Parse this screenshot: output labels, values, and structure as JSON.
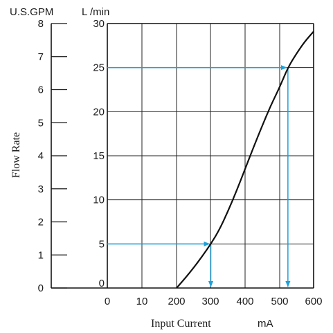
{
  "chart_data": {
    "type": "line",
    "xlabel": "Input Current",
    "xlabel_unit": "mA",
    "ylabel": "Flow Rate",
    "y_left_unit": "U.S.GPM",
    "y_right_unit": "L /min",
    "x_ticks": [
      "0",
      "10",
      "200",
      "300",
      "400",
      "500",
      "600"
    ],
    "y_left_ticks": [
      "0",
      "1",
      "2",
      "3",
      "4",
      "5",
      "6",
      "7",
      "8"
    ],
    "y_right_ticks": [
      "0",
      "5",
      "10",
      "15",
      "20",
      "25",
      "30"
    ],
    "ylim_lpm": [
      0,
      30
    ],
    "ylim_gpm": [
      0,
      8
    ],
    "grid": true,
    "series": [
      {
        "points": [
          {
            "x": 200,
            "y": 0
          },
          {
            "x": 225,
            "y": 1.1
          },
          {
            "x": 250,
            "y": 2.3
          },
          {
            "x": 275,
            "y": 3.6
          },
          {
            "x": 300,
            "y": 5
          },
          {
            "x": 325,
            "y": 6.6
          },
          {
            "x": 350,
            "y": 8.7
          },
          {
            "x": 375,
            "y": 11.0
          },
          {
            "x": 400,
            "y": 13.5
          },
          {
            "x": 425,
            "y": 16.0
          },
          {
            "x": 450,
            "y": 18.4
          },
          {
            "x": 475,
            "y": 20.7
          },
          {
            "x": 500,
            "y": 22.7
          },
          {
            "x": 525,
            "y": 25
          },
          {
            "x": 550,
            "y": 26.6
          },
          {
            "x": 575,
            "y": 28.0
          },
          {
            "x": 600,
            "y": 29.1
          }
        ]
      }
    ],
    "guides": [
      {
        "x": 300,
        "y": 5
      },
      {
        "x": 525,
        "y": 25
      }
    ],
    "colors": {
      "guide": "#1fa0d8",
      "curve": "#111111",
      "grid": "#222222"
    }
  }
}
